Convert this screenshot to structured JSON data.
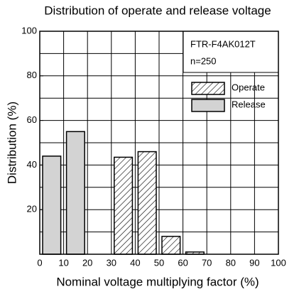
{
  "chart_data": {
    "type": "histogram",
    "title": "Distribution of operate and release voltage",
    "xlabel": "Nominal voltage multiplying factor (%)",
    "ylabel": "Distribution (%)",
    "annotations": [
      "FTR-F4AK012T",
      "n=250"
    ],
    "xlim": [
      0,
      100
    ],
    "ylim": [
      0,
      100
    ],
    "xticks": [
      0,
      10,
      20,
      30,
      40,
      50,
      60,
      70,
      80,
      90,
      100
    ],
    "yticks": [
      20,
      40,
      60,
      80,
      100
    ],
    "ygrid": [
      10,
      20,
      30,
      40,
      50,
      60,
      70,
      80,
      90
    ],
    "grid": true,
    "series": [
      {
        "name": "Operate",
        "color": "#000000",
        "fill": "hatch",
        "bins": [
          30,
          40,
          50,
          60,
          70
        ],
        "values": [
          43.5,
          46,
          8,
          1
        ]
      },
      {
        "name": "Release",
        "color": "#d3d3d3",
        "fill": "solid",
        "bins": [
          0,
          10,
          20
        ],
        "values": [
          44,
          55
        ]
      }
    ]
  }
}
